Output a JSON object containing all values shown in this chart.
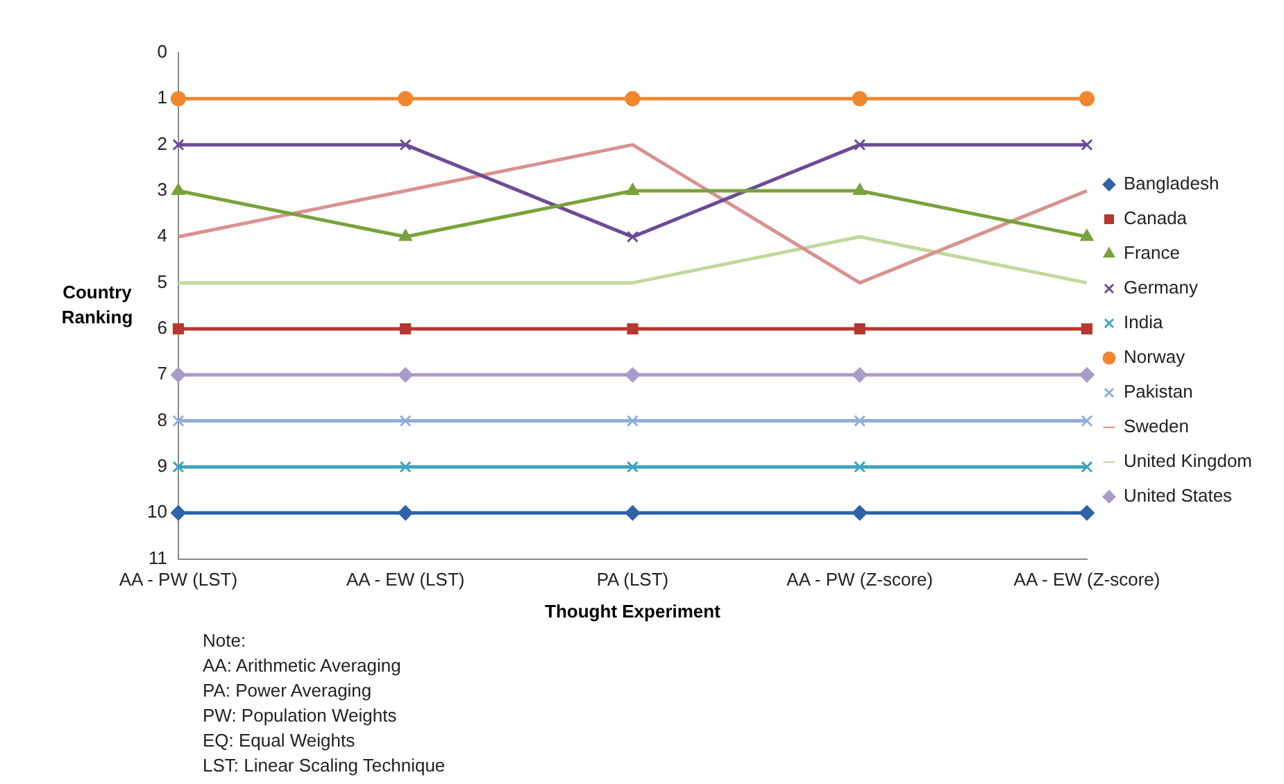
{
  "chart_data": {
    "type": "line",
    "xlabel": "Thought Experiment",
    "ylabel": "Country Ranking",
    "categories": [
      "AA - PW (LST)",
      "AA - EW (LST)",
      "PA (LST)",
      "AA - PW (Z-score)",
      "AA - EW (Z-score)"
    ],
    "ylim": [
      11,
      0
    ],
    "yticks": [
      0,
      1,
      2,
      3,
      4,
      5,
      6,
      7,
      8,
      9,
      10,
      11
    ],
    "grid": false,
    "legend": "right",
    "line_style": "solid",
    "series": [
      {
        "name": "Bangladesh",
        "color": "#2f62a6",
        "marker": "diamond",
        "values": [
          10,
          10,
          10,
          10,
          10
        ]
      },
      {
        "name": "Canada",
        "color": "#b5382e",
        "marker": "square",
        "values": [
          6,
          6,
          6,
          6,
          6
        ]
      },
      {
        "name": "France",
        "color": "#79a23a",
        "marker": "triangle",
        "values": [
          3,
          4,
          3,
          3,
          4
        ]
      },
      {
        "name": "Germany",
        "color": "#6a4c96",
        "marker": "cross",
        "values": [
          2,
          2,
          4,
          2,
          2
        ]
      },
      {
        "name": "India",
        "color": "#3ba5bd",
        "marker": "cross",
        "values": [
          9,
          9,
          9,
          9,
          9
        ]
      },
      {
        "name": "Norway",
        "color": "#f0872f",
        "marker": "circle",
        "values": [
          1,
          1,
          1,
          1,
          1
        ]
      },
      {
        "name": "Pakistan",
        "color": "#8faedb",
        "marker": "cross",
        "values": [
          8,
          8,
          8,
          8,
          8
        ]
      },
      {
        "name": "Sweden",
        "color": "#d9928f",
        "marker": "none",
        "values": [
          4,
          3,
          2,
          5,
          3
        ]
      },
      {
        "name": "United Kingdom",
        "color": "#c3d89b",
        "marker": "none",
        "values": [
          5,
          5,
          5,
          4,
          5
        ]
      },
      {
        "name": "United States",
        "color": "#a99bc9",
        "marker": "diamond",
        "values": [
          7,
          7,
          7,
          7,
          7
        ]
      }
    ],
    "annotations": [
      "Note:",
      "AA: Arithmetic Averaging",
      "PA: Power Averaging",
      "PW: Population Weights",
      "EQ: Equal Weights",
      "LST: Linear Scaling Technique"
    ]
  }
}
